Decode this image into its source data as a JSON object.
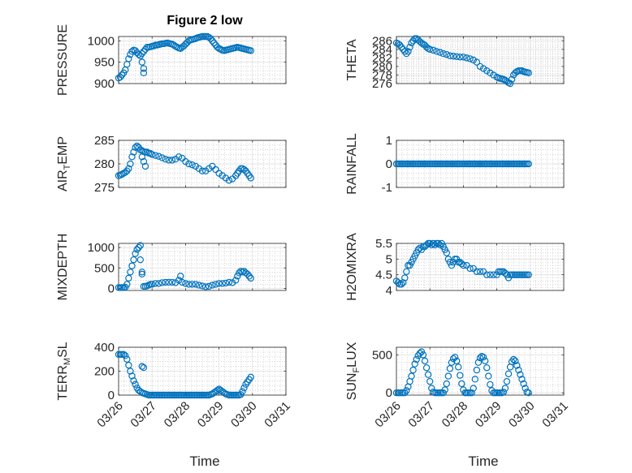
{
  "figure": {
    "title": "Figure 2 low",
    "xlabel": "Time",
    "x_ticklabels": [
      "03/26",
      "03/27",
      "03/28",
      "03/29",
      "03/30",
      "03/31"
    ]
  },
  "chart_data": [
    {
      "type": "scatter",
      "id": "pressure",
      "title": "Figure 2 low",
      "ylabel": "PRESSURE",
      "ylabel_parts": [
        "PRESSURE"
      ],
      "xlim": [
        0,
        5
      ],
      "ylim": [
        900,
        1010
      ],
      "yticks": [
        900,
        950,
        1000
      ],
      "ytick_labels": [
        "900",
        "950",
        "1000"
      ],
      "grid": true,
      "x": [
        0,
        0.05,
        0.1,
        0.15,
        0.2,
        0.25,
        0.3,
        0.35,
        0.4,
        0.45,
        0.5,
        0.55,
        0.6,
        0.65,
        0.7,
        0.75,
        0.8,
        0.85,
        0.9,
        0.95,
        1.0,
        1.05,
        1.1,
        1.15,
        1.2,
        1.25,
        1.3,
        1.35,
        1.4,
        1.45,
        1.5,
        1.55,
        1.6,
        1.65,
        1.7,
        1.75,
        1.8,
        1.85,
        1.9,
        1.95,
        2.0,
        2.05,
        2.1,
        2.15,
        2.2,
        2.25,
        2.3,
        2.35,
        2.4,
        2.45,
        2.5,
        2.55,
        2.6,
        2.65,
        2.7,
        2.75,
        2.8,
        2.85,
        2.9,
        2.95,
        3.0,
        3.05,
        3.1,
        3.15,
        3.2,
        3.25,
        3.3,
        3.35,
        3.4,
        3.45,
        3.5,
        3.55,
        3.6,
        3.65,
        3.7,
        3.75,
        3.8,
        3.85,
        3.9,
        3.95,
        0.7,
        0.75,
        0.75
      ],
      "y": [
        913,
        915,
        920,
        925,
        932,
        945,
        958,
        968,
        975,
        978,
        977,
        972,
        968,
        965,
        970,
        975,
        980,
        985,
        985,
        986,
        987,
        988,
        990,
        990,
        991,
        992,
        993,
        993,
        994,
        995,
        994,
        993,
        992,
        990,
        987,
        985,
        983,
        982,
        985,
        988,
        992,
        996,
        1000,
        1002,
        1003,
        1004,
        1005,
        1007,
        1008,
        1009,
        1010,
        1010,
        1010,
        1010,
        1008,
        1005,
        1000,
        995,
        990,
        985,
        982,
        980,
        978,
        977,
        978,
        979,
        980,
        981,
        982,
        983,
        984,
        985,
        984,
        983,
        982,
        981,
        980,
        979,
        978,
        977,
        950,
        935,
        925
      ]
    },
    {
      "type": "scatter",
      "id": "theta",
      "ylabel": "THETA",
      "ylabel_parts": [
        "THETA"
      ],
      "xlim": [
        0,
        5
      ],
      "ylim": [
        276,
        287
      ],
      "yticks": [
        276,
        278,
        280,
        282,
        284,
        286
      ],
      "ytick_labels": [
        "276",
        "278",
        "280",
        "282",
        "284",
        "286"
      ],
      "grid": true,
      "x": [
        0,
        0.05,
        0.1,
        0.15,
        0.2,
        0.25,
        0.3,
        0.35,
        0.4,
        0.45,
        0.5,
        0.55,
        0.6,
        0.65,
        0.7,
        0.75,
        0.8,
        0.85,
        0.9,
        0.95,
        1.0,
        1.1,
        1.2,
        1.3,
        1.4,
        1.5,
        1.6,
        1.7,
        1.8,
        1.9,
        2.0,
        2.1,
        2.2,
        2.3,
        2.4,
        2.5,
        2.6,
        2.7,
        2.8,
        2.9,
        3.0,
        3.05,
        3.1,
        3.15,
        3.2,
        3.25,
        3.3,
        3.35,
        3.4,
        3.45,
        3.5,
        3.55,
        3.6,
        3.65,
        3.7,
        3.75,
        3.8,
        3.85,
        3.9,
        3.95
      ],
      "y": [
        285.5,
        285.3,
        285,
        284.5,
        284,
        283.5,
        283,
        283.5,
        284.5,
        285.5,
        286,
        286.5,
        286.5,
        286.2,
        285.8,
        285.5,
        285.2,
        285,
        284.5,
        284.2,
        284,
        283.8,
        283.5,
        283.3,
        283,
        282.8,
        282.5,
        282.4,
        282.3,
        282.2,
        282.2,
        282,
        281.8,
        281.5,
        281,
        280,
        279.5,
        279,
        278.5,
        278,
        277.5,
        277.3,
        277.2,
        277.1,
        277,
        276.8,
        276.5,
        276.2,
        276,
        277,
        278,
        278.5,
        278.8,
        279,
        279,
        279,
        278.8,
        278.7,
        278.6,
        278.5
      ]
    },
    {
      "type": "scatter",
      "id": "air_temp",
      "ylabel": "AIR_TEMP",
      "ylabel_parts": [
        "AIR",
        "T",
        "EMP"
      ],
      "xlim": [
        0,
        5
      ],
      "ylim": [
        275,
        285
      ],
      "yticks": [
        275,
        280,
        285
      ],
      "ytick_labels": [
        "275",
        "280",
        "285"
      ],
      "grid": true,
      "x": [
        0,
        0.05,
        0.1,
        0.15,
        0.2,
        0.25,
        0.3,
        0.35,
        0.4,
        0.45,
        0.5,
        0.55,
        0.6,
        0.65,
        0.7,
        0.75,
        0.8,
        0.85,
        0.9,
        0.95,
        1.0,
        1.1,
        1.2,
        1.3,
        1.4,
        1.5,
        1.6,
        1.7,
        1.8,
        1.9,
        2.0,
        2.1,
        2.2,
        2.3,
        2.4,
        2.5,
        2.6,
        2.7,
        2.8,
        2.9,
        3.0,
        3.1,
        3.2,
        3.3,
        3.4,
        3.5,
        3.55,
        3.6,
        3.65,
        3.7,
        3.75,
        3.8,
        3.85,
        3.9,
        3.95,
        0.7,
        0.75,
        0.8
      ],
      "y": [
        277.5,
        277.6,
        277.8,
        278,
        278.2,
        278.5,
        279,
        280,
        281.5,
        282.5,
        283.5,
        283.8,
        283.5,
        283,
        282.8,
        282.6,
        282.5,
        282.5,
        282.3,
        282.2,
        282,
        281.8,
        281.6,
        281.3,
        281,
        280.8,
        280.8,
        281,
        281.5,
        281.2,
        280.5,
        280,
        279.8,
        279.5,
        279,
        278.5,
        278.5,
        279,
        279.5,
        278.8,
        278,
        277.5,
        277,
        276.5,
        276.8,
        277.5,
        278,
        278.5,
        279,
        279,
        278.8,
        278.5,
        278,
        277.5,
        277,
        281.5,
        280.5,
        279.5
      ]
    },
    {
      "type": "scatter",
      "id": "rainfall",
      "ylabel": "RAINFALL",
      "ylabel_parts": [
        "RAINFALL"
      ],
      "xlim": [
        0,
        5
      ],
      "ylim": [
        -1,
        1
      ],
      "yticks": [
        -1,
        0,
        1
      ],
      "ytick_labels": [
        "-1",
        "0",
        "1"
      ],
      "grid": true,
      "x": [
        0,
        0.05,
        0.1,
        0.15,
        0.2,
        0.25,
        0.3,
        0.35,
        0.4,
        0.45,
        0.5,
        0.55,
        0.6,
        0.65,
        0.7,
        0.75,
        0.8,
        0.85,
        0.9,
        0.95,
        1.0,
        1.05,
        1.1,
        1.15,
        1.2,
        1.25,
        1.3,
        1.35,
        1.4,
        1.45,
        1.5,
        1.55,
        1.6,
        1.65,
        1.7,
        1.75,
        1.8,
        1.85,
        1.9,
        1.95,
        2.0,
        2.05,
        2.1,
        2.15,
        2.2,
        2.25,
        2.3,
        2.35,
        2.4,
        2.45,
        2.5,
        2.55,
        2.6,
        2.65,
        2.7,
        2.75,
        2.8,
        2.85,
        2.9,
        2.95,
        3.0,
        3.05,
        3.1,
        3.15,
        3.2,
        3.25,
        3.3,
        3.35,
        3.4,
        3.45,
        3.5,
        3.55,
        3.6,
        3.65,
        3.7,
        3.75,
        3.8,
        3.85,
        3.9,
        3.95
      ],
      "y": [
        0,
        0,
        0,
        0,
        0,
        0,
        0,
        0,
        0,
        0,
        0,
        0,
        0,
        0,
        0,
        0,
        0,
        0,
        0,
        0,
        0,
        0,
        0,
        0,
        0,
        0,
        0,
        0,
        0,
        0,
        0,
        0,
        0,
        0,
        0,
        0,
        0,
        0,
        0,
        0,
        0,
        0,
        0,
        0,
        0,
        0,
        0,
        0,
        0,
        0,
        0,
        0,
        0,
        0,
        0,
        0,
        0,
        0,
        0,
        0,
        0,
        0,
        0,
        0,
        0,
        0,
        0,
        0,
        0,
        0,
        0,
        0,
        0,
        0,
        0,
        0,
        0,
        0,
        0,
        0
      ]
    },
    {
      "type": "scatter",
      "id": "mixdepth",
      "ylabel": "MIXDEPTH",
      "ylabel_parts": [
        "MIXDEPTH"
      ],
      "xlim": [
        0,
        5
      ],
      "ylim": [
        -50,
        1100
      ],
      "yticks": [
        0,
        500,
        1000
      ],
      "ytick_labels": [
        "0",
        "500",
        "1000"
      ],
      "grid": true,
      "x": [
        0,
        0.05,
        0.1,
        0.15,
        0.2,
        0.25,
        0.3,
        0.35,
        0.4,
        0.45,
        0.5,
        0.55,
        0.6,
        0.65,
        0.7,
        0.75,
        0.8,
        0.85,
        0.9,
        0.95,
        1.0,
        1.1,
        1.2,
        1.3,
        1.4,
        1.5,
        1.6,
        1.7,
        1.8,
        1.85,
        1.9,
        2.0,
        2.1,
        2.2,
        2.3,
        2.4,
        2.5,
        2.6,
        2.7,
        2.8,
        2.9,
        3.0,
        3.1,
        3.2,
        3.3,
        3.4,
        3.5,
        3.55,
        3.6,
        3.65,
        3.7,
        3.75,
        3.8,
        3.85,
        3.9,
        3.95,
        0.65,
        0.7
      ],
      "y": [
        20,
        20,
        20,
        20,
        30,
        100,
        250,
        400,
        550,
        700,
        850,
        950,
        1000,
        1050,
        400,
        50,
        50,
        60,
        80,
        100,
        100,
        120,
        120,
        140,
        150,
        150,
        150,
        140,
        200,
        300,
        150,
        120,
        100,
        100,
        100,
        80,
        60,
        40,
        50,
        80,
        100,
        120,
        120,
        130,
        150,
        140,
        200,
        300,
        380,
        420,
        400,
        420,
        380,
        350,
        300,
        250,
        700,
        350
      ]
    },
    {
      "type": "scatter",
      "id": "h2omixra",
      "ylabel": "H2OMIXRA",
      "ylabel_parts": [
        "H2OMIXRA"
      ],
      "xlim": [
        0,
        5
      ],
      "ylim": [
        4,
        5.5
      ],
      "yticks": [
        4,
        4.5,
        5,
        5.5
      ],
      "ytick_labels": [
        "4",
        "4.5",
        "5",
        "5.5"
      ],
      "grid": true,
      "x": [
        0,
        0.05,
        0.1,
        0.15,
        0.2,
        0.25,
        0.3,
        0.35,
        0.4,
        0.45,
        0.5,
        0.55,
        0.6,
        0.65,
        0.7,
        0.75,
        0.8,
        0.85,
        0.9,
        0.95,
        1.0,
        1.05,
        1.1,
        1.15,
        1.2,
        1.25,
        1.3,
        1.35,
        1.4,
        1.45,
        1.5,
        1.55,
        1.6,
        1.65,
        1.7,
        1.75,
        1.8,
        1.85,
        1.9,
        1.95,
        2.0,
        2.1,
        2.2,
        2.3,
        2.4,
        2.5,
        2.6,
        2.7,
        2.8,
        2.9,
        3.0,
        3.05,
        3.1,
        3.15,
        3.2,
        3.25,
        3.3,
        3.35,
        3.4,
        3.45,
        3.5,
        3.55,
        3.6,
        3.65,
        3.7,
        3.75,
        3.8,
        3.85,
        3.9,
        3.95
      ],
      "y": [
        4.3,
        4.25,
        4.2,
        4.2,
        4.25,
        4.4,
        4.6,
        4.8,
        4.8,
        4.9,
        5.0,
        5.1,
        5.2,
        5.3,
        5.35,
        5.3,
        5.4,
        5.4,
        5.45,
        5.5,
        5.5,
        5.45,
        5.5,
        5.45,
        5.5,
        5.5,
        5.45,
        5.5,
        5.4,
        5.3,
        5.2,
        5.0,
        4.9,
        4.8,
        4.9,
        5.0,
        5.0,
        4.9,
        4.9,
        4.85,
        4.8,
        4.8,
        4.7,
        4.7,
        4.6,
        4.6,
        4.6,
        4.5,
        4.5,
        4.5,
        4.5,
        4.6,
        4.6,
        4.6,
        4.6,
        4.55,
        4.5,
        4.4,
        4.5,
        4.5,
        4.5,
        4.5,
        4.5,
        4.5,
        4.5,
        4.5,
        4.5,
        4.5,
        4.5,
        4.5
      ]
    },
    {
      "type": "scatter",
      "id": "terr_msl",
      "ylabel": "TERR_MSL",
      "ylabel_parts": [
        "TERR",
        "M",
        "SL"
      ],
      "xlim": [
        0,
        5
      ],
      "ylim": [
        0,
        400
      ],
      "yticks": [
        0,
        200,
        400
      ],
      "ytick_labels": [
        "0",
        "200",
        "400"
      ],
      "grid": true,
      "x": [
        0,
        0.05,
        0.1,
        0.15,
        0.2,
        0.25,
        0.3,
        0.35,
        0.4,
        0.45,
        0.5,
        0.55,
        0.6,
        0.65,
        0.7,
        0.75,
        0.8,
        0.85,
        0.9,
        0.95,
        1.0,
        1.05,
        1.1,
        1.15,
        1.2,
        1.25,
        1.3,
        1.35,
        1.4,
        1.45,
        1.5,
        1.55,
        1.6,
        1.65,
        1.7,
        1.75,
        1.8,
        1.85,
        1.9,
        1.95,
        2.0,
        2.05,
        2.1,
        2.15,
        2.2,
        2.25,
        2.3,
        2.35,
        2.4,
        2.45,
        2.5,
        2.55,
        2.6,
        2.65,
        2.7,
        2.75,
        2.8,
        2.85,
        2.9,
        2.95,
        3.0,
        3.05,
        3.1,
        3.15,
        3.2,
        3.25,
        3.3,
        3.35,
        3.4,
        3.45,
        3.5,
        3.55,
        3.6,
        3.65,
        3.7,
        3.75,
        3.8,
        3.85,
        3.9,
        3.95,
        0.7,
        0.75
      ],
      "y": [
        340,
        340,
        340,
        340,
        330,
        300,
        250,
        200,
        160,
        120,
        90,
        60,
        40,
        30,
        20,
        15,
        10,
        5,
        0,
        0,
        0,
        0,
        0,
        0,
        0,
        0,
        0,
        0,
        0,
        0,
        0,
        0,
        0,
        0,
        0,
        0,
        0,
        0,
        0,
        0,
        0,
        0,
        0,
        0,
        0,
        0,
        0,
        0,
        0,
        0,
        0,
        0,
        0,
        0,
        0,
        5,
        10,
        20,
        30,
        40,
        50,
        40,
        30,
        20,
        10,
        5,
        0,
        0,
        0,
        0,
        0,
        0,
        0,
        5,
        30,
        60,
        90,
        110,
        130,
        150,
        240,
        230
      ]
    },
    {
      "type": "scatter",
      "id": "sun_flux",
      "ylabel": "SUN_FLUX",
      "ylabel_parts": [
        "SUN",
        "F",
        "LUX"
      ],
      "xlim": [
        0,
        5
      ],
      "ylim": [
        -30,
        600
      ],
      "yticks": [
        0,
        500
      ],
      "ytick_labels": [
        "0",
        "500"
      ],
      "grid": true,
      "x": [
        0,
        0.05,
        0.1,
        0.15,
        0.2,
        0.25,
        0.3,
        0.35,
        0.4,
        0.45,
        0.5,
        0.55,
        0.6,
        0.65,
        0.7,
        0.75,
        0.8,
        0.85,
        0.9,
        0.95,
        1.0,
        1.05,
        1.1,
        1.15,
        1.2,
        1.25,
        1.3,
        1.35,
        1.4,
        1.45,
        1.5,
        1.55,
        1.6,
        1.65,
        1.7,
        1.75,
        1.8,
        1.85,
        1.9,
        1.95,
        2.0,
        2.05,
        2.1,
        2.15,
        2.2,
        2.25,
        2.3,
        2.35,
        2.4,
        2.45,
        2.5,
        2.55,
        2.6,
        2.65,
        2.7,
        2.75,
        2.8,
        2.85,
        2.9,
        2.95,
        3.0,
        3.05,
        3.1,
        3.15,
        3.2,
        3.25,
        3.3,
        3.35,
        3.4,
        3.45,
        3.5,
        3.55,
        3.6,
        3.65,
        3.7,
        3.75,
        3.8,
        3.85,
        3.9,
        3.95
      ],
      "y": [
        0,
        0,
        0,
        0,
        0,
        0,
        30,
        80,
        150,
        220,
        300,
        380,
        440,
        490,
        520,
        540,
        500,
        420,
        330,
        240,
        150,
        60,
        10,
        0,
        0,
        0,
        0,
        0,
        0,
        40,
        120,
        220,
        320,
        400,
        450,
        470,
        420,
        340,
        230,
        120,
        40,
        0,
        0,
        0,
        0,
        0,
        60,
        180,
        300,
        400,
        460,
        480,
        470,
        420,
        330,
        220,
        110,
        30,
        0,
        0,
        0,
        0,
        0,
        0,
        10,
        60,
        150,
        250,
        340,
        410,
        440,
        420,
        360,
        300,
        240,
        180,
        120,
        60,
        10,
        0
      ]
    }
  ],
  "colors": {
    "marker": "#0072BD",
    "axes": "#262626",
    "grid_major": "#dfdfdf",
    "grid_minor": "#bdbdbd"
  }
}
